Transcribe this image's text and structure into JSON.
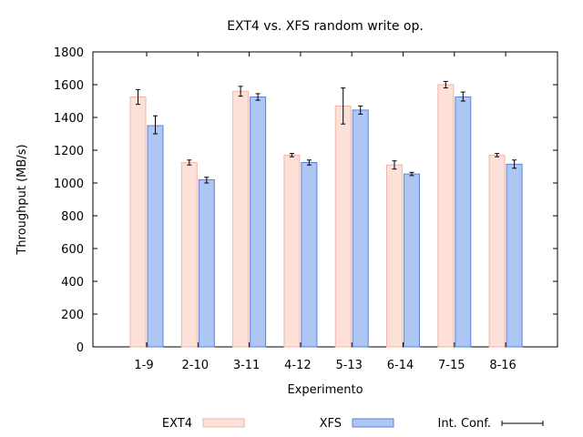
{
  "chart_data": {
    "type": "bar",
    "title": "EXT4 vs. XFS random write op.",
    "xlabel": "Experimento",
    "ylabel": "Throughput (MB/s)",
    "ylim": [
      0,
      1800
    ],
    "yticks": [
      0,
      200,
      400,
      600,
      800,
      1000,
      1200,
      1400,
      1600,
      1800
    ],
    "categories": [
      "1-9",
      "2-10",
      "3-11",
      "4-12",
      "5-13",
      "6-14",
      "7-15",
      "8-16"
    ],
    "series": [
      {
        "name": "EXT4",
        "values": [
          1525,
          1125,
          1560,
          1170,
          1470,
          1110,
          1600,
          1170
        ],
        "err_low": [
          1480,
          1110,
          1530,
          1160,
          1360,
          1085,
          1580,
          1160
        ],
        "err_high": [
          1570,
          1140,
          1590,
          1180,
          1580,
          1135,
          1620,
          1180
        ],
        "fill": "#fde0d8",
        "stroke": "#f2b5a6"
      },
      {
        "name": "XFS",
        "values": [
          1350,
          1020,
          1525,
          1125,
          1445,
          1055,
          1525,
          1115
        ],
        "err_low": [
          1300,
          1000,
          1505,
          1110,
          1420,
          1045,
          1500,
          1090
        ],
        "err_high": [
          1410,
          1035,
          1545,
          1140,
          1470,
          1065,
          1555,
          1140
        ],
        "fill": "#adc6f4",
        "stroke": "#5b84d6"
      }
    ],
    "error_legend": "Int. Conf.",
    "legend_position": "bottom",
    "grid": false
  }
}
